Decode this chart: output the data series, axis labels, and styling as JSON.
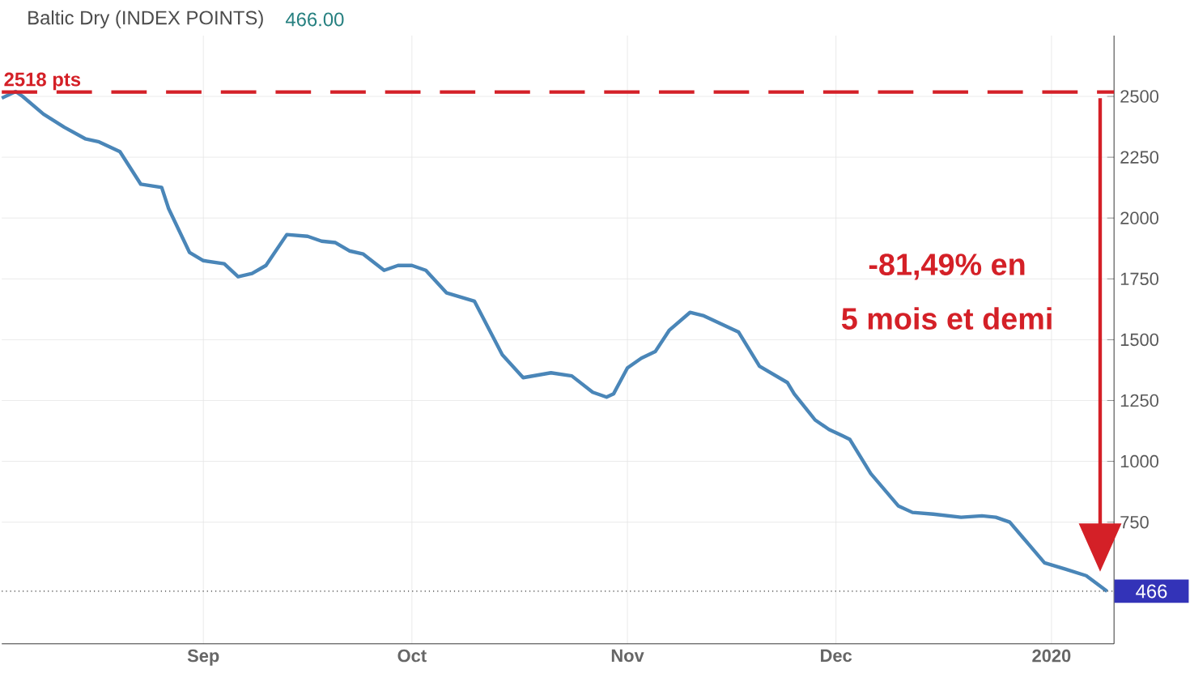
{
  "chart_data": {
    "type": "line",
    "title": "Baltic Dry (INDEX POINTS)",
    "subtitle": "466.00",
    "x": [
      "2019-08-03",
      "2019-08-05",
      "2019-08-06",
      "2019-08-09",
      "2019-08-12",
      "2019-08-15",
      "2019-08-17",
      "2019-08-20",
      "2019-08-23",
      "2019-08-26",
      "2019-08-27",
      "2019-08-30",
      "2019-09-01",
      "2019-09-04",
      "2019-09-06",
      "2019-09-08",
      "2019-09-10",
      "2019-09-13",
      "2019-09-16",
      "2019-09-18",
      "2019-09-20",
      "2019-09-22",
      "2019-09-24",
      "2019-09-27",
      "2019-09-29",
      "2019-10-01",
      "2019-10-03",
      "2019-10-06",
      "2019-10-10",
      "2019-10-14",
      "2019-10-17",
      "2019-10-21",
      "2019-10-24",
      "2019-10-27",
      "2019-10-29",
      "2019-10-30",
      "2019-11-01",
      "2019-11-03",
      "2019-11-05",
      "2019-11-07",
      "2019-11-10",
      "2019-11-12",
      "2019-11-14",
      "2019-11-17",
      "2019-11-20",
      "2019-11-24",
      "2019-11-25",
      "2019-11-28",
      "2019-11-30",
      "2019-12-02",
      "2019-12-03",
      "2019-12-06",
      "2019-12-10",
      "2019-12-12",
      "2019-12-15",
      "2019-12-19",
      "2019-12-22",
      "2019-12-24",
      "2019-12-26",
      "2019-12-28",
      "2019-12-31",
      "2020-01-03",
      "2020-01-06",
      "2020-01-09"
    ],
    "series": [
      {
        "color": "#4a86b8",
        "values": [
          2493,
          2520,
          2500,
          2427,
          2373,
          2326,
          2313,
          2273,
          2139,
          2126,
          2039,
          1859,
          1825,
          1812,
          1759,
          1772,
          1805,
          1932,
          1925,
          1905,
          1899,
          1865,
          1852,
          1785,
          1805,
          1805,
          1785,
          1692,
          1658,
          1438,
          1344,
          1364,
          1351,
          1284,
          1264,
          1277,
          1384,
          1424,
          1451,
          1538,
          1612,
          1598,
          1571,
          1531,
          1391,
          1324,
          1277,
          1170,
          1131,
          1104,
          1090,
          950,
          816,
          790,
          783,
          770,
          776,
          770,
          750,
          683,
          583,
          557,
          530,
          466
        ]
      }
    ],
    "xlim": [
      "2019-08-03",
      "2020-01-10"
    ],
    "xticks": [
      {
        "value": "2019-09-01",
        "label": "Sep"
      },
      {
        "value": "2019-10-01",
        "label": "Oct"
      },
      {
        "value": "2019-11-01",
        "label": "Nov"
      },
      {
        "value": "2019-12-01",
        "label": "Dec"
      },
      {
        "value": "2020-01-01",
        "label": "2020"
      }
    ],
    "ylim": [
      250,
      2750
    ],
    "yticks": [
      750,
      1000,
      1250,
      1500,
      1750,
      2000,
      2250,
      2500
    ],
    "grid": true,
    "marker": "none",
    "line_style": "solid",
    "ref_lines": [
      {
        "axis": "y",
        "value": 2518,
        "label": "2518 pts",
        "color": "#d42027",
        "line_style": "dashed"
      },
      {
        "axis": "y",
        "value": 466,
        "label": "466",
        "color": "#333333",
        "line_style": "dotted"
      }
    ],
    "annotations": [
      "-81,49% en",
      "5 mois et demi"
    ]
  }
}
